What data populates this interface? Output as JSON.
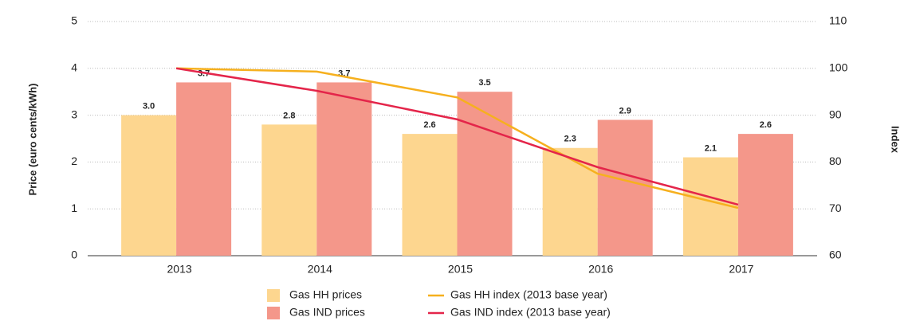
{
  "chart_data": {
    "type": "bar",
    "y_label": "Price (euro cents/kWh)",
    "y2_label": "Index",
    "categories": [
      "2013",
      "2014",
      "2015",
      "2016",
      "2017"
    ],
    "series": [
      {
        "name": "Gas HH prices",
        "type": "bar",
        "color": "#fdd68f",
        "values": [
          3.0,
          2.8,
          2.6,
          2.3,
          2.1
        ],
        "value_labels": [
          "3.0",
          "2.8",
          "2.6",
          "2.3",
          "2.1"
        ]
      },
      {
        "name": "Gas IND prices",
        "type": "bar",
        "color": "#f4978a",
        "values": [
          3.7,
          3.7,
          3.5,
          2.9,
          2.6
        ],
        "value_labels": [
          "3.7",
          "3.7",
          "3.5",
          "2.9",
          "2.6"
        ]
      },
      {
        "name": "Gas HH index (2013 base year)",
        "type": "line",
        "axis": "y2",
        "color": "#f6b01e",
        "values": [
          100,
          99.3,
          93.8,
          77.5,
          70.2
        ]
      },
      {
        "name": "Gas IND index (2013 base year)",
        "type": "line",
        "axis": "y2",
        "color": "#e4254a",
        "values": [
          100,
          95.2,
          89.1,
          78.9,
          70.9
        ]
      }
    ],
    "ylim": [
      0,
      5
    ],
    "yticks": [
      0,
      1,
      2,
      3,
      4,
      5
    ],
    "y2lim": [
      60,
      110
    ],
    "y2ticks": [
      60,
      70,
      80,
      90,
      100,
      110
    ],
    "grid": true
  }
}
